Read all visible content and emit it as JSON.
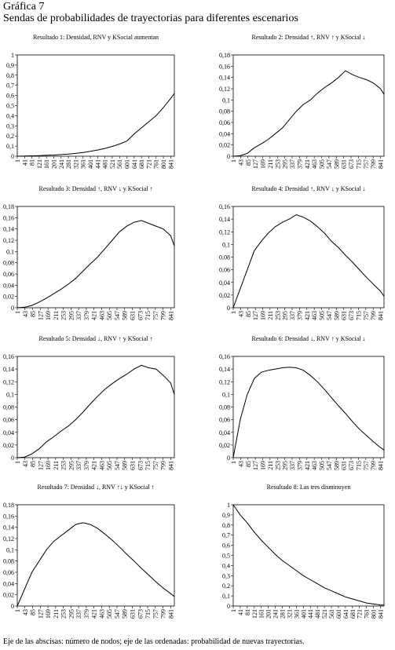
{
  "header": {
    "title": "Gráfica 7",
    "subtitle": "Sendas de probabilidades de trayectorias para diferentes escenarios"
  },
  "footer": "Eje de las abscisas: número de nodos; eje de las ordenadas: probabilidad de nuevas trayectorias.",
  "chart_data": [
    {
      "type": "line",
      "title": "Resultado 1: Densidad, RNV y KSocial aumentan",
      "color": "#000000",
      "x": [
        1,
        41,
        81,
        121,
        161,
        201,
        241,
        281,
        321,
        361,
        401,
        441,
        481,
        521,
        561,
        601,
        641,
        681,
        721,
        761,
        801,
        841,
        861
      ],
      "values": [
        0,
        0.002,
        0.004,
        0.006,
        0.009,
        0.012,
        0.016,
        0.021,
        0.028,
        0.037,
        0.048,
        0.061,
        0.077,
        0.097,
        0.12,
        0.15,
        0.22,
        0.28,
        0.34,
        0.4,
        0.48,
        0.57,
        0.62
      ],
      "xlim": [
        1,
        861
      ],
      "xticks": [
        1,
        41,
        81,
        121,
        161,
        201,
        241,
        281,
        321,
        361,
        401,
        441,
        481,
        521,
        561,
        601,
        641,
        681,
        721,
        761,
        801,
        841
      ],
      "ylim": [
        0,
        1
      ],
      "yticks": [
        0,
        {
          "value": 0.1,
          "label": "0,1"
        },
        {
          "value": 0.2,
          "label": "0,2"
        },
        {
          "value": 0.3,
          "label": "0,3"
        },
        {
          "value": 0.4,
          "label": "0,4"
        },
        {
          "value": 0.5,
          "label": "0,5"
        },
        {
          "value": 0.6,
          "label": "0,6"
        },
        {
          "value": 0.7,
          "label": "0,7"
        },
        {
          "value": 0.8,
          "label": "0,8"
        },
        {
          "value": 0.9,
          "label": "0,9"
        },
        1
      ]
    },
    {
      "type": "line",
      "title": "Resultado 2: Densidad ↑, RNV ↑ y KSocial ↓",
      "color": "#000000",
      "x": [
        1,
        41,
        81,
        121,
        161,
        201,
        241,
        281,
        321,
        361,
        401,
        441,
        481,
        521,
        561,
        601,
        641,
        681,
        721,
        761,
        801,
        841,
        861
      ],
      "values": [
        0,
        0.001,
        0.005,
        0.015,
        0.022,
        0.03,
        0.04,
        0.05,
        0.065,
        0.08,
        0.092,
        0.1,
        0.112,
        0.122,
        0.13,
        0.14,
        0.152,
        0.145,
        0.14,
        0.136,
        0.13,
        0.12,
        0.11
      ],
      "xlim": [
        1,
        861
      ],
      "xticks": [
        1,
        43,
        85,
        127,
        169,
        211,
        253,
        295,
        337,
        379,
        421,
        463,
        505,
        547,
        589,
        631,
        673,
        715,
        757,
        799,
        841
      ],
      "ylim": [
        0,
        0.18
      ],
      "yticks": [
        0,
        {
          "value": 0.02,
          "label": "0,02"
        },
        {
          "value": 0.04,
          "label": "0,04"
        },
        {
          "value": 0.06,
          "label": "0,06"
        },
        {
          "value": 0.08,
          "label": "0,08"
        },
        {
          "value": 0.1,
          "label": "0,1"
        },
        {
          "value": 0.12,
          "label": "0,12"
        },
        {
          "value": 0.14,
          "label": "0,14"
        },
        {
          "value": 0.16,
          "label": "0,16"
        },
        {
          "value": 0.18,
          "label": "0,18"
        }
      ]
    },
    {
      "type": "line",
      "title": "Resultado 3: Densidad ↑, RNV ↓ y KSocial ↑",
      "color": "#000000",
      "x": [
        1,
        41,
        81,
        121,
        161,
        201,
        241,
        281,
        321,
        361,
        401,
        441,
        481,
        521,
        561,
        601,
        641,
        681,
        721,
        761,
        801,
        841,
        861
      ],
      "values": [
        0,
        0.001,
        0.004,
        0.01,
        0.017,
        0.025,
        0.033,
        0.042,
        0.052,
        0.065,
        0.078,
        0.09,
        0.105,
        0.12,
        0.135,
        0.145,
        0.152,
        0.155,
        0.15,
        0.145,
        0.14,
        0.128,
        0.11
      ],
      "xlim": [
        1,
        861
      ],
      "xticks": [
        1,
        43,
        85,
        127,
        169,
        211,
        253,
        295,
        337,
        379,
        421,
        463,
        505,
        547,
        589,
        631,
        673,
        715,
        757,
        799,
        841
      ],
      "ylim": [
        0,
        0.18
      ],
      "yticks": [
        0,
        {
          "value": 0.02,
          "label": "0,02"
        },
        {
          "value": 0.04,
          "label": "0,04"
        },
        {
          "value": 0.06,
          "label": "0,06"
        },
        {
          "value": 0.08,
          "label": "0,08"
        },
        {
          "value": 0.1,
          "label": "0,1"
        },
        {
          "value": 0.12,
          "label": "0,12"
        },
        {
          "value": 0.14,
          "label": "0,14"
        },
        {
          "value": 0.16,
          "label": "0,16"
        },
        {
          "value": 0.18,
          "label": "0,18"
        }
      ]
    },
    {
      "type": "line",
      "title": "Resultado 4: Densidad ↑, RNV ↓ y KSocial ↓",
      "color": "#000000",
      "x": [
        1,
        41,
        81,
        121,
        161,
        201,
        241,
        281,
        321,
        361,
        401,
        441,
        481,
        521,
        561,
        601,
        641,
        681,
        721,
        761,
        801,
        841,
        861
      ],
      "values": [
        0,
        0.03,
        0.06,
        0.09,
        0.105,
        0.118,
        0.128,
        0.135,
        0.14,
        0.147,
        0.143,
        0.137,
        0.128,
        0.118,
        0.105,
        0.095,
        0.083,
        0.072,
        0.06,
        0.048,
        0.037,
        0.026,
        0.018
      ],
      "xlim": [
        1,
        861
      ],
      "xticks": [
        1,
        43,
        85,
        127,
        169,
        211,
        253,
        295,
        337,
        379,
        421,
        463,
        505,
        547,
        589,
        631,
        673,
        715,
        757,
        799,
        841
      ],
      "ylim": [
        0,
        0.16
      ],
      "yticks": [
        0,
        {
          "value": 0.02,
          "label": "0,02"
        },
        {
          "value": 0.04,
          "label": "0,04"
        },
        {
          "value": 0.06,
          "label": "0,06"
        },
        {
          "value": 0.08,
          "label": "0,08"
        },
        {
          "value": 0.1,
          "label": "0,1"
        },
        {
          "value": 0.12,
          "label": "0,12"
        },
        {
          "value": 0.14,
          "label": "0,14"
        },
        {
          "value": 0.16,
          "label": "0,16"
        }
      ]
    },
    {
      "type": "line",
      "title": "Resultado 5: Densidad ↓, RNV ↑ y KSocial ↑",
      "color": "#000000",
      "x": [
        1,
        41,
        81,
        121,
        161,
        201,
        241,
        281,
        321,
        361,
        401,
        441,
        481,
        521,
        561,
        601,
        641,
        681,
        721,
        761,
        801,
        841,
        861
      ],
      "values": [
        0,
        0.001,
        0.006,
        0.014,
        0.025,
        0.033,
        0.042,
        0.05,
        0.06,
        0.072,
        0.085,
        0.097,
        0.108,
        0.117,
        0.125,
        0.132,
        0.14,
        0.146,
        0.142,
        0.14,
        0.13,
        0.118,
        0.1
      ],
      "xlim": [
        1,
        861
      ],
      "xticks": [
        1,
        43,
        85,
        127,
        169,
        211,
        253,
        295,
        337,
        379,
        421,
        463,
        505,
        547,
        589,
        631,
        673,
        715,
        757,
        799,
        841
      ],
      "ylim": [
        0,
        0.16
      ],
      "yticks": [
        0,
        {
          "value": 0.02,
          "label": "0,02"
        },
        {
          "value": 0.04,
          "label": "0,04"
        },
        {
          "value": 0.06,
          "label": "0,06"
        },
        {
          "value": 0.08,
          "label": "0,08"
        },
        {
          "value": 0.1,
          "label": "0,1"
        },
        {
          "value": 0.12,
          "label": "0,12"
        },
        {
          "value": 0.14,
          "label": "0,14"
        },
        {
          "value": 0.16,
          "label": "0,16"
        }
      ]
    },
    {
      "type": "line",
      "title": "Resultado 6: Densidad ↓, RNV ↑ y KSocial ↓",
      "color": "#000000",
      "x": [
        1,
        41,
        81,
        121,
        161,
        201,
        241,
        281,
        321,
        361,
        401,
        441,
        481,
        521,
        561,
        601,
        641,
        681,
        721,
        761,
        801,
        841,
        861
      ],
      "values": [
        0,
        0.06,
        0.1,
        0.125,
        0.135,
        0.138,
        0.14,
        0.142,
        0.143,
        0.142,
        0.138,
        0.13,
        0.12,
        0.108,
        0.095,
        0.082,
        0.07,
        0.057,
        0.045,
        0.035,
        0.025,
        0.016,
        0.012
      ],
      "xlim": [
        1,
        861
      ],
      "xticks": [
        1,
        43,
        85,
        127,
        169,
        211,
        253,
        295,
        337,
        379,
        421,
        463,
        505,
        547,
        589,
        631,
        673,
        715,
        757,
        799,
        841
      ],
      "ylim": [
        0,
        0.16
      ],
      "yticks": [
        0,
        {
          "value": 0.02,
          "label": "0,02"
        },
        {
          "value": 0.04,
          "label": "0,04"
        },
        {
          "value": 0.06,
          "label": "0,06"
        },
        {
          "value": 0.08,
          "label": "0,08"
        },
        {
          "value": 0.1,
          "label": "0,1"
        },
        {
          "value": 0.12,
          "label": "0,12"
        },
        {
          "value": 0.14,
          "label": "0,14"
        },
        {
          "value": 0.16,
          "label": "0,16"
        }
      ]
    },
    {
      "type": "line",
      "title": "Resultado 7: Densidad ↓, RNV ↑↓ y KSocial ↑",
      "color": "#000000",
      "x": [
        1,
        41,
        81,
        121,
        161,
        201,
        241,
        281,
        321,
        361,
        401,
        441,
        481,
        521,
        561,
        601,
        641,
        681,
        721,
        761,
        801,
        841,
        861
      ],
      "values": [
        0,
        0.03,
        0.06,
        0.08,
        0.1,
        0.115,
        0.125,
        0.135,
        0.145,
        0.148,
        0.145,
        0.138,
        0.128,
        0.117,
        0.105,
        0.092,
        0.08,
        0.067,
        0.055,
        0.043,
        0.032,
        0.022,
        0.017
      ],
      "xlim": [
        1,
        861
      ],
      "xticks": [
        1,
        43,
        85,
        127,
        169,
        211,
        253,
        295,
        337,
        379,
        421,
        463,
        505,
        547,
        589,
        631,
        673,
        715,
        757,
        799,
        841
      ],
      "ylim": [
        0,
        0.18
      ],
      "yticks": [
        0,
        {
          "value": 0.02,
          "label": "0,02"
        },
        {
          "value": 0.04,
          "label": "0,04"
        },
        {
          "value": 0.06,
          "label": "0,06"
        },
        {
          "value": 0.08,
          "label": "0,08"
        },
        {
          "value": 0.1,
          "label": "0,1"
        },
        {
          "value": 0.12,
          "label": "0,12"
        },
        {
          "value": 0.14,
          "label": "0,14"
        },
        {
          "value": 0.16,
          "label": "0,16"
        },
        {
          "value": 0.18,
          "label": "0,18"
        }
      ]
    },
    {
      "type": "line",
      "title": "Resultado 8: Las tres disminuyen",
      "color": "#000000",
      "x": [
        1,
        41,
        81,
        121,
        161,
        201,
        241,
        281,
        321,
        361,
        401,
        441,
        481,
        521,
        561,
        601,
        641,
        681,
        721,
        761,
        801,
        841,
        861
      ],
      "values": [
        1,
        0.9,
        0.82,
        0.73,
        0.65,
        0.58,
        0.51,
        0.45,
        0.4,
        0.35,
        0.3,
        0.26,
        0.22,
        0.18,
        0.15,
        0.12,
        0.09,
        0.07,
        0.05,
        0.03,
        0.02,
        0.01,
        0.01
      ],
      "xlim": [
        1,
        861
      ],
      "xticks": [
        1,
        41,
        81,
        121,
        161,
        201,
        241,
        281,
        321,
        361,
        401,
        441,
        481,
        521,
        561,
        601,
        641,
        681,
        721,
        761,
        801,
        841
      ],
      "ylim": [
        0,
        1
      ],
      "yticks": [
        0,
        {
          "value": 0.1,
          "label": "0,1"
        },
        {
          "value": 0.2,
          "label": "0,2"
        },
        {
          "value": 0.3,
          "label": "0,3"
        },
        {
          "value": 0.4,
          "label": "0,4"
        },
        {
          "value": 0.5,
          "label": "0,5"
        },
        {
          "value": 0.6,
          "label": "0,6"
        },
        {
          "value": 0.7,
          "label": "0,7"
        },
        {
          "value": 0.8,
          "label": "0,8"
        },
        {
          "value": 0.9,
          "label": "0,9"
        },
        1
      ]
    }
  ]
}
